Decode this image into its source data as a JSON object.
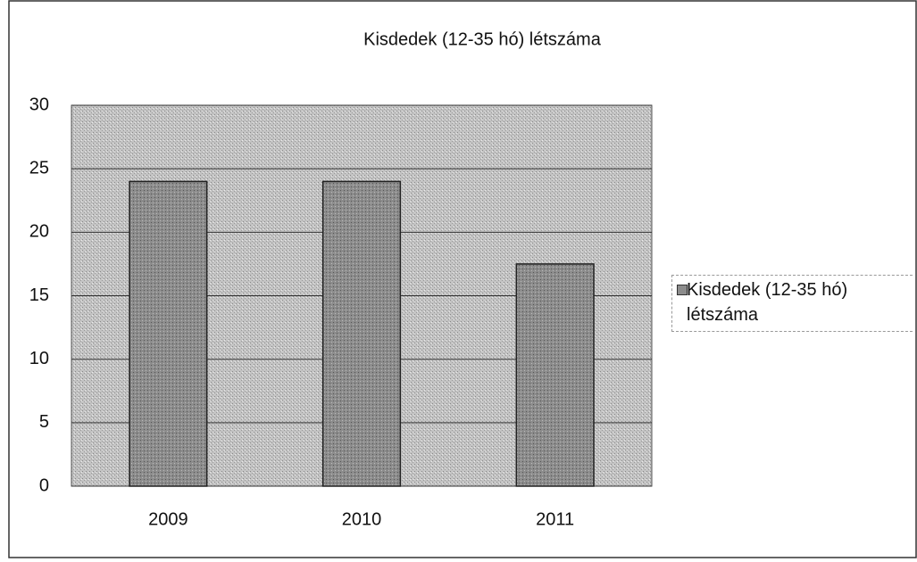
{
  "chart_data": {
    "type": "bar",
    "title": "Kisdedek (12-35 hó) létszáma",
    "categories": [
      "2009",
      "2010",
      "2011"
    ],
    "series": [
      {
        "name": "Kisdedek (12-35 hó) létszáma",
        "color": "#8c8c8c",
        "values": [
          24,
          24,
          17.5
        ]
      }
    ],
    "ylim": [
      0,
      30
    ],
    "yticks": [
      0,
      5,
      10,
      15,
      20,
      25,
      30
    ],
    "grid": true,
    "legend": "right"
  }
}
